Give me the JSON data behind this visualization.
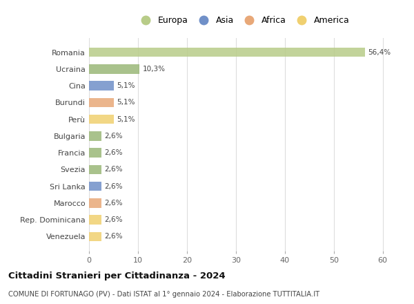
{
  "categories": [
    "Venezuela",
    "Rep. Dominicana",
    "Marocco",
    "Sri Lanka",
    "Svezia",
    "Francia",
    "Bulgaria",
    "Perù",
    "Burundi",
    "Cina",
    "Ucraina",
    "Romania"
  ],
  "values": [
    2.6,
    2.6,
    2.6,
    2.6,
    2.6,
    2.6,
    2.6,
    5.1,
    5.1,
    5.1,
    10.3,
    56.4
  ],
  "labels": [
    "2,6%",
    "2,6%",
    "2,6%",
    "2,6%",
    "2,6%",
    "2,6%",
    "2,6%",
    "5,1%",
    "5,1%",
    "5,1%",
    "10,3%",
    "56,4%"
  ],
  "colors": [
    "#f0d070",
    "#f0d070",
    "#e8a878",
    "#7090c8",
    "#9ab878",
    "#9ab878",
    "#9ab878",
    "#f0d070",
    "#e8a878",
    "#7090c8",
    "#9ab878",
    "#b8cc88"
  ],
  "legend": [
    {
      "label": "Europa",
      "color": "#b8cc88"
    },
    {
      "label": "Asia",
      "color": "#7090c8"
    },
    {
      "label": "Africa",
      "color": "#e8a878"
    },
    {
      "label": "America",
      "color": "#f0d070"
    }
  ],
  "xlim": [
    0,
    63
  ],
  "xticks": [
    0,
    10,
    20,
    30,
    40,
    50,
    60
  ],
  "title": "Cittadini Stranieri per Cittadinanza - 2024",
  "subtitle": "COMUNE DI FORTUNAGO (PV) - Dati ISTAT al 1° gennaio 2024 - Elaborazione TUTTITALIA.IT",
  "background_color": "#ffffff",
  "grid_color": "#dddddd",
  "bar_height": 0.55
}
